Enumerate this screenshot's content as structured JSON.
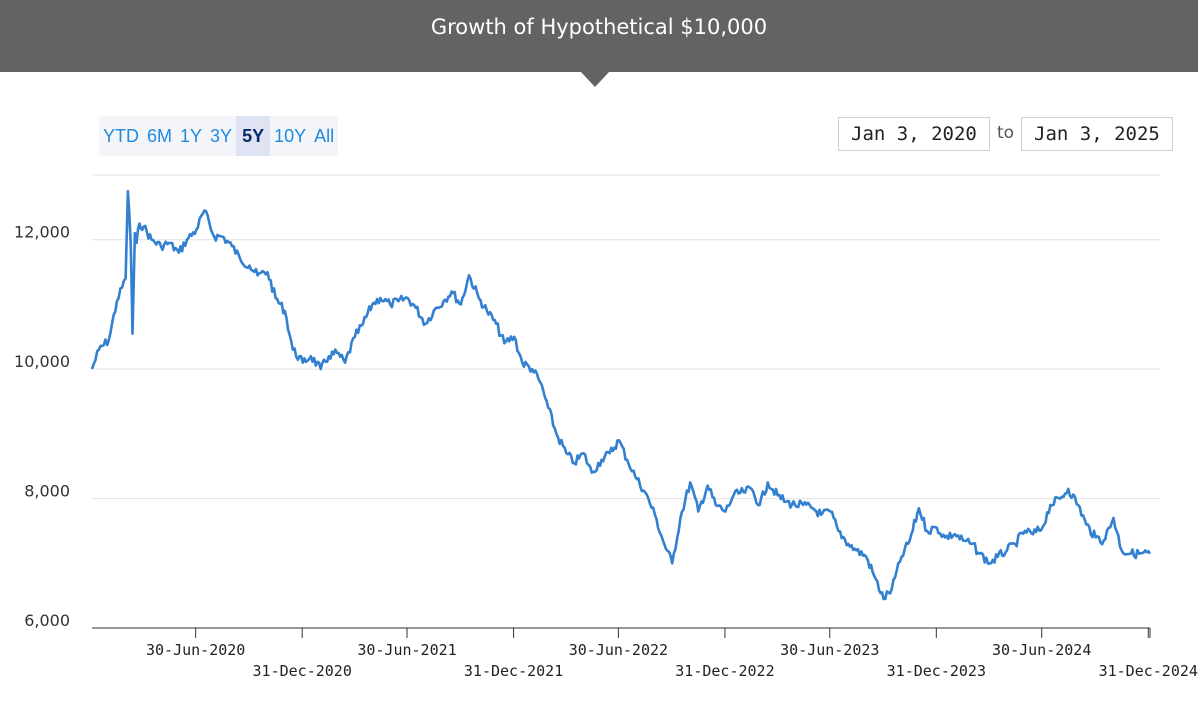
{
  "header": {
    "title": "Growth of Hypothetical $10,000"
  },
  "range_selector": {
    "buttons": [
      "YTD",
      "6M",
      "1Y",
      "3Y",
      "5Y",
      "10Y",
      "All"
    ],
    "active": "5Y"
  },
  "date_range": {
    "from": "Jan 3, 2020",
    "to_label": "to",
    "to": "Jan 3, 2025"
  },
  "colors": {
    "line": "#3380d0",
    "header": "#636363",
    "button_text": "#1f8ae0"
  },
  "chart_data": {
    "type": "line",
    "title": "Growth of Hypothetical $10,000",
    "xlim": [
      "2020-01-03",
      "2025-01-03"
    ],
    "ylim": [
      6000,
      13000
    ],
    "yticks": [
      6000,
      8000,
      10000,
      12000
    ],
    "ytick_labels": [
      "6,000",
      "8,000",
      "10,000",
      "12,000"
    ],
    "xtick_labels": [
      "30-Jun-2020",
      "31-Dec-2020",
      "30-Jun-2021",
      "31-Dec-2021",
      "30-Jun-2022",
      "31-Dec-2022",
      "30-Jun-2023",
      "31-Dec-2023",
      "30-Jun-2024",
      "31-Dec-2024"
    ],
    "xticks": [
      "2020-06-30",
      "2020-12-31",
      "2021-06-30",
      "2021-12-31",
      "2022-06-30",
      "2022-12-31",
      "2023-06-30",
      "2023-12-31",
      "2024-06-30",
      "2024-12-31"
    ],
    "grid": "horizontal",
    "legend": "none",
    "series": [
      {
        "x": [
          "2020-01-03",
          "2020-01-15",
          "2020-02-01",
          "2020-02-15",
          "2020-03-01",
          "2020-03-05",
          "2020-03-10",
          "2020-03-13",
          "2020-03-17",
          "2020-03-20",
          "2020-03-25",
          "2020-04-01",
          "2020-04-15",
          "2020-05-01",
          "2020-05-15",
          "2020-06-01",
          "2020-06-15",
          "2020-07-01",
          "2020-07-15",
          "2020-08-01",
          "2020-08-15",
          "2020-09-01",
          "2020-09-15",
          "2020-10-01",
          "2020-10-15",
          "2020-11-01",
          "2020-11-15",
          "2020-12-01",
          "2020-12-15",
          "2021-01-01",
          "2021-01-15",
          "2021-02-01",
          "2021-02-15",
          "2021-03-01",
          "2021-03-15",
          "2021-04-01",
          "2021-04-15",
          "2021-05-01",
          "2021-05-15",
          "2021-06-01",
          "2021-06-15",
          "2021-07-01",
          "2021-07-15",
          "2021-08-01",
          "2021-08-15",
          "2021-09-01",
          "2021-09-15",
          "2021-10-01",
          "2021-10-15",
          "2021-11-01",
          "2021-11-15",
          "2021-12-01",
          "2021-12-15",
          "2022-01-01",
          "2022-01-15",
          "2022-02-01",
          "2022-02-15",
          "2022-03-01",
          "2022-03-15",
          "2022-04-01",
          "2022-04-15",
          "2022-05-01",
          "2022-05-15",
          "2022-06-01",
          "2022-06-15",
          "2022-07-01",
          "2022-07-15",
          "2022-08-01",
          "2022-08-15",
          "2022-09-01",
          "2022-09-15",
          "2022-10-01",
          "2022-10-15",
          "2022-11-01",
          "2022-11-15",
          "2022-12-01",
          "2022-12-15",
          "2023-01-01",
          "2023-01-15",
          "2023-02-01",
          "2023-02-15",
          "2023-03-01",
          "2023-03-15",
          "2023-04-01",
          "2023-04-15",
          "2023-05-01",
          "2023-05-15",
          "2023-06-01",
          "2023-06-15",
          "2023-07-01",
          "2023-07-15",
          "2023-08-01",
          "2023-08-15",
          "2023-09-01",
          "2023-09-15",
          "2023-10-01",
          "2023-10-15",
          "2023-11-01",
          "2023-11-15",
          "2023-12-01",
          "2023-12-15",
          "2024-01-01",
          "2024-01-15",
          "2024-02-01",
          "2024-02-15",
          "2024-03-01",
          "2024-03-15",
          "2024-04-01",
          "2024-04-15",
          "2024-05-01",
          "2024-05-15",
          "2024-06-01",
          "2024-06-15",
          "2024-07-01",
          "2024-07-15",
          "2024-08-01",
          "2024-08-15",
          "2024-09-01",
          "2024-09-15",
          "2024-10-01",
          "2024-10-15",
          "2024-11-01",
          "2024-11-15",
          "2024-12-01",
          "2024-12-15",
          "2025-01-03"
        ],
        "values": [
          10000,
          10300,
          10450,
          11050,
          11400,
          12750,
          11900,
          10550,
          12100,
          11950,
          12250,
          12200,
          12000,
          11900,
          11950,
          11800,
          12000,
          12150,
          12450,
          12050,
          12050,
          11900,
          11700,
          11600,
          11450,
          11500,
          11100,
          10900,
          10300,
          10100,
          10200,
          10000,
          10200,
          10250,
          10100,
          10500,
          10700,
          11000,
          11100,
          11000,
          11050,
          11100,
          10950,
          10700,
          10900,
          11050,
          11200,
          11000,
          11450,
          11100,
          10900,
          10700,
          10400,
          10500,
          10100,
          10000,
          9800,
          9400,
          9000,
          8700,
          8550,
          8700,
          8400,
          8600,
          8700,
          8900,
          8600,
          8300,
          8100,
          7750,
          7350,
          7000,
          7700,
          8250,
          7800,
          8200,
          7900,
          7800,
          8050,
          8100,
          8150,
          7900,
          8250,
          8050,
          7950,
          7900,
          7900,
          7850,
          7750,
          7800,
          7500,
          7300,
          7200,
          7100,
          6800,
          6450,
          6600,
          7100,
          7350,
          7850,
          7500,
          7550,
          7400,
          7450,
          7350,
          7300,
          7150,
          7000,
          7100,
          7200,
          7300,
          7500,
          7450,
          7550,
          7900,
          8000,
          8150,
          7900,
          7600,
          7400,
          7350,
          7700,
          7200,
          7150,
          7150,
          7150
        ]
      }
    ]
  }
}
